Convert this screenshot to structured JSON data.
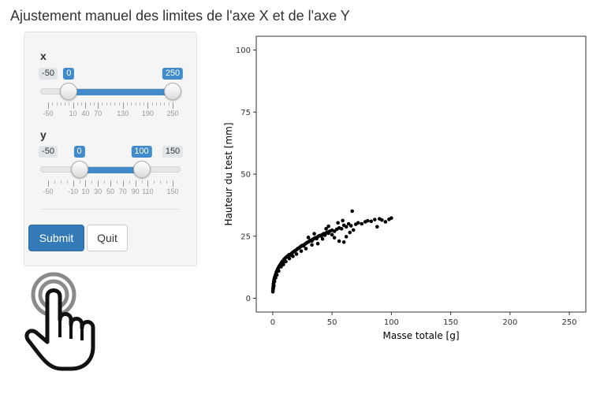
{
  "page": {
    "title": "Ajustement manuel des limites de l'axe X et de l'axe Y"
  },
  "sliders": {
    "x": {
      "label": "x",
      "min_label": "-50",
      "max_label": "250",
      "min": -50,
      "max": 250,
      "value_low": 0,
      "value_high": 250,
      "low_label": "0",
      "high_label": "250",
      "tick_values": [
        -50,
        10,
        40,
        70,
        130,
        190,
        250
      ],
      "tick_labels": [
        "-50",
        "10",
        "40",
        "70",
        "130",
        "190",
        "250"
      ]
    },
    "y": {
      "label": "y",
      "min_label": "-50",
      "max_label": "150",
      "min": -50,
      "max": 150,
      "value_low": 0,
      "value_high": 100,
      "low_label": "0",
      "high_label": "100",
      "tick_values": [
        -50,
        -10,
        10,
        30,
        50,
        70,
        90,
        110,
        150
      ],
      "tick_labels": [
        "-50",
        "-10",
        "10",
        "30",
        "50",
        "70",
        "90",
        "110",
        "150"
      ]
    }
  },
  "buttons": {
    "submit": "Submit",
    "quit": "Quit"
  },
  "icons": {
    "hand": "hand-pointer-icon"
  },
  "colors": {
    "primary": "#337ab7",
    "slider_fill": "#428bca",
    "points": "#000000"
  },
  "chart_data": {
    "type": "scatter",
    "xlabel": "Masse totale  [g]",
    "ylabel": "Hauteur du test  [mm]",
    "xlim": [
      0,
      250
    ],
    "ylim": [
      0,
      100
    ],
    "xticks": [
      0,
      50,
      100,
      150,
      200,
      250
    ],
    "yticks": [
      0,
      25,
      50,
      75,
      100
    ],
    "grid": false,
    "points": [
      [
        0.1,
        2.6
      ],
      [
        0.2,
        3.2
      ],
      [
        0.3,
        3.8
      ],
      [
        0.4,
        4.3
      ],
      [
        0.5,
        4.9
      ],
      [
        0.6,
        5.4
      ],
      [
        0.7,
        6.0
      ],
      [
        0.8,
        5.6
      ],
      [
        0.9,
        6.5
      ],
      [
        1.0,
        7.0
      ],
      [
        1.2,
        7.4
      ],
      [
        1.4,
        7.9
      ],
      [
        1.6,
        8.3
      ],
      [
        1.8,
        8.1
      ],
      [
        2.0,
        8.8
      ],
      [
        2.2,
        9.1
      ],
      [
        2.5,
        9.6
      ],
      [
        2.8,
        9.9
      ],
      [
        3.0,
        10.4
      ],
      [
        3.3,
        10.7
      ],
      [
        3.6,
        11.1
      ],
      [
        4.0,
        11.6
      ],
      [
        4.3,
        11.4
      ],
      [
        4.6,
        12.1
      ],
      [
        5.0,
        12.4
      ],
      [
        5.5,
        12.9
      ],
      [
        6.0,
        13.3
      ],
      [
        6.5,
        13.6
      ],
      [
        7.0,
        14.0
      ],
      [
        7.5,
        14.4
      ],
      [
        8.0,
        14.8
      ],
      [
        8.5,
        14.5
      ],
      [
        9.0,
        15.2
      ],
      [
        9.5,
        15.6
      ],
      [
        10.0,
        15.9
      ],
      [
        11.0,
        16.4
      ],
      [
        12.0,
        16.8
      ],
      [
        13.0,
        17.2
      ],
      [
        14.0,
        17.6
      ],
      [
        15.0,
        17.4
      ],
      [
        16.0,
        18.1
      ],
      [
        17.0,
        18.5
      ],
      [
        18.0,
        18.9
      ],
      [
        19.0,
        19.2
      ],
      [
        20.0,
        19.5
      ],
      [
        21.0,
        20.0
      ],
      [
        22.0,
        20.2
      ],
      [
        23.0,
        20.6
      ],
      [
        24.0,
        21.0
      ],
      [
        25.0,
        21.3
      ],
      [
        26.0,
        21.1
      ],
      [
        27.0,
        21.8
      ],
      [
        28.0,
        22.1
      ],
      [
        29.0,
        22.5
      ],
      [
        30.0,
        22.7
      ],
      [
        31.0,
        23.0
      ],
      [
        32.0,
        23.4
      ],
      [
        33.0,
        23.1
      ],
      [
        34.0,
        23.8
      ],
      [
        35.0,
        24.1
      ],
      [
        36.0,
        24.4
      ],
      [
        37.0,
        24.0
      ],
      [
        38.0,
        24.8
      ],
      [
        39.0,
        25.1
      ],
      [
        40.0,
        25.3
      ],
      [
        41.0,
        25.0
      ],
      [
        42.0,
        25.7
      ],
      [
        43.0,
        26.0
      ],
      [
        44.0,
        25.4
      ],
      [
        45.0,
        26.3
      ],
      [
        46.0,
        26.6
      ],
      [
        47.0,
        26.2
      ],
      [
        48.0,
        27.0
      ],
      [
        50.0,
        27.4
      ],
      [
        52.0,
        27.0
      ],
      [
        54.0,
        27.8
      ],
      [
        56.0,
        28.3
      ],
      [
        58.0,
        28.0
      ],
      [
        60.0,
        29.4
      ],
      [
        62.0,
        28.8
      ],
      [
        64.0,
        30.0
      ],
      [
        66.0,
        29.2
      ],
      [
        67.0,
        35.1
      ],
      [
        70.0,
        29.8
      ],
      [
        72.0,
        30.4
      ],
      [
        75.0,
        30.0
      ],
      [
        78.0,
        30.8
      ],
      [
        80.0,
        31.2
      ],
      [
        83.0,
        31.0
      ],
      [
        86.0,
        31.7
      ],
      [
        88.0,
        28.8
      ],
      [
        90.0,
        32.0
      ],
      [
        92.0,
        31.5
      ],
      [
        95.0,
        30.8
      ],
      [
        98.0,
        31.8
      ],
      [
        100.0,
        32.3
      ],
      [
        56.0,
        23.0
      ],
      [
        60.0,
        22.6
      ],
      [
        62.0,
        24.8
      ],
      [
        65.0,
        26.5
      ],
      [
        68.0,
        27.5
      ],
      [
        42.0,
        23.9
      ],
      [
        38.0,
        22.0
      ],
      [
        33.0,
        21.5
      ],
      [
        28.0,
        20.0
      ],
      [
        24.0,
        19.0
      ],
      [
        20.0,
        17.8
      ],
      [
        17.0,
        16.9
      ],
      [
        14.0,
        16.0
      ],
      [
        11.0,
        14.8
      ],
      [
        9.0,
        13.6
      ],
      [
        7.0,
        12.7
      ],
      [
        5.0,
        11.0
      ],
      [
        3.5,
        9.4
      ],
      [
        2.4,
        8.2
      ],
      [
        1.5,
        6.8
      ],
      [
        0.9,
        5.0
      ],
      [
        0.5,
        4.1
      ],
      [
        30.0,
        24.5
      ],
      [
        35.0,
        26.0
      ],
      [
        45.0,
        28.0
      ],
      [
        50.0,
        25.6
      ],
      [
        55.0,
        30.4
      ],
      [
        59.0,
        31.3
      ],
      [
        47.0,
        29.0
      ],
      [
        52.0,
        24.4
      ]
    ]
  }
}
